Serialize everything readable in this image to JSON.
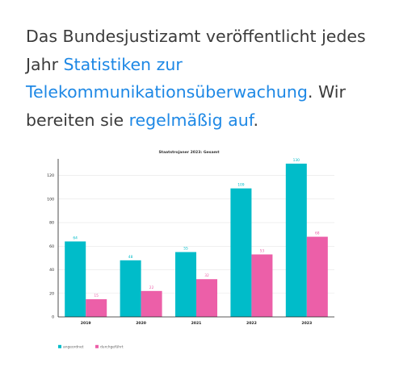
{
  "intro": {
    "text_1": "Das Bundesjustizamt veröffentlicht jedes Jahr ",
    "link_1": "Statistiken zur Telekommunikationsüberwachung",
    "text_2": ". Wir bereiten sie ",
    "link_2": "regelmäßig auf",
    "text_3": "."
  },
  "colors": {
    "angeordnet": "#00bcc9",
    "durchgefuehrt": "#ec5fa8",
    "link": "#1e88e5"
  },
  "chart_data": {
    "type": "bar",
    "title": "Staatstrojaner 2023: Gesamt",
    "categories": [
      "2019",
      "2020",
      "2021",
      "2022",
      "2023"
    ],
    "series": [
      {
        "name": "angeordnet",
        "values": [
          64,
          48,
          55,
          109,
          130
        ]
      },
      {
        "name": "durchgeführt",
        "values": [
          15,
          22,
          32,
          53,
          68
        ]
      }
    ],
    "yticks": [
      0,
      20,
      40,
      60,
      80,
      100,
      120
    ],
    "ylim": [
      0,
      132
    ],
    "grid": true,
    "legend": "bottom-left",
    "xlabel": "",
    "ylabel": ""
  }
}
